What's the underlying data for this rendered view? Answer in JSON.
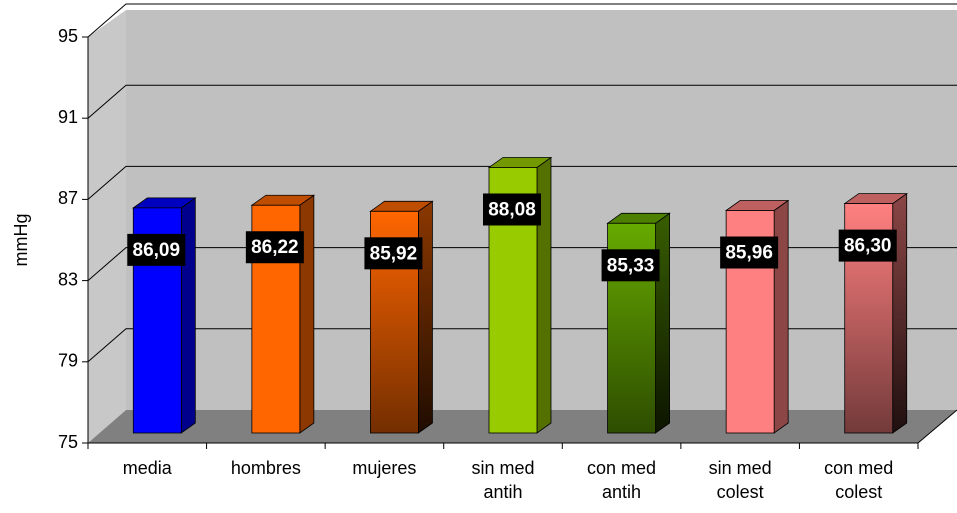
{
  "chart_data": {
    "type": "bar3d",
    "y_label": "mmHg",
    "categories": [
      "media",
      "hombres",
      "mujeres",
      "sin med\nantih",
      "con med\nantih",
      "sin med\ncolest",
      "con med\ncolest"
    ],
    "values": [
      86.09,
      86.22,
      85.92,
      88.08,
      85.33,
      85.96,
      86.3
    ],
    "value_labels": [
      "86,09",
      "86,22",
      "85,92",
      "88,08",
      "85,33",
      "85,96",
      "86,30"
    ],
    "colors": [
      "#0000ff",
      "#ff6600",
      "#ff6600",
      "#99cc00",
      "#66aa00",
      "#ff8080",
      "#ff8080"
    ],
    "gradient": [
      false,
      false,
      true,
      false,
      true,
      false,
      true
    ],
    "ylim": [
      75,
      95
    ],
    "yticks": [
      75,
      79,
      83,
      87,
      91,
      95
    ],
    "grid": true
  }
}
